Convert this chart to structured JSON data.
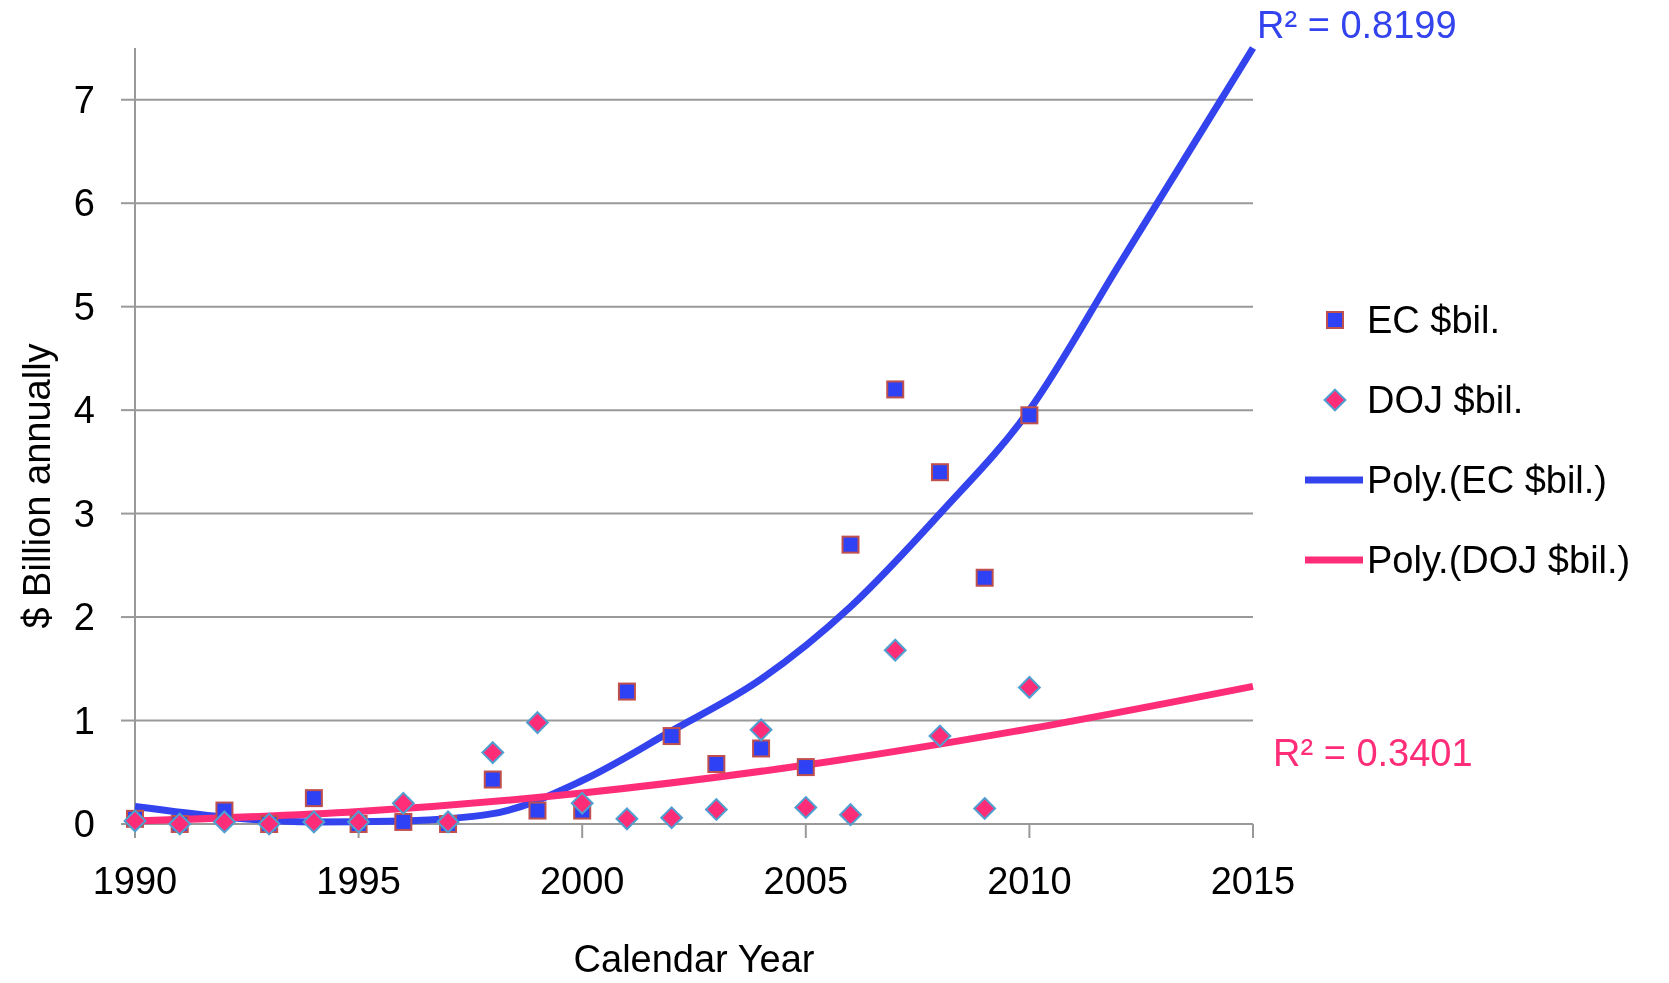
{
  "chart_data": {
    "type": "scatter",
    "xlabel": "Calendar Year",
    "ylabel": "$ Billion annually",
    "xlim": [
      1990,
      2015
    ],
    "xticks": [
      1990,
      1995,
      2000,
      2005,
      2010,
      2015
    ],
    "ylim": [
      0,
      7.5
    ],
    "yticks": [
      0,
      1,
      2,
      3,
      4,
      5,
      6,
      7
    ],
    "grid": "y",
    "legend": "right",
    "series": [
      {
        "name": "EC $bil.",
        "marker": "square",
        "color": "#2e41f5",
        "x": [
          1990,
          1991,
          1992,
          1993,
          1994,
          1995,
          1996,
          1997,
          1998,
          1999,
          2000,
          2001,
          2002,
          2003,
          2004,
          2005,
          2006,
          2007,
          2008,
          2009,
          2010
        ],
        "values": [
          0.05,
          0,
          0.13,
          0,
          0.25,
          0,
          0.02,
          0,
          0.43,
          0.13,
          0.13,
          1.28,
          0.85,
          0.58,
          0.73,
          0.55,
          2.7,
          4.2,
          3.4,
          2.38,
          3.95
        ]
      },
      {
        "name": "DOJ $bil.",
        "marker": "diamond",
        "color": "#ff2d78",
        "x": [
          1990,
          1991,
          1992,
          1993,
          1994,
          1995,
          1996,
          1997,
          1998,
          1999,
          2000,
          2001,
          2002,
          2003,
          2004,
          2005,
          2006,
          2007,
          2008,
          2009,
          2010
        ],
        "values": [
          0.03,
          0,
          0.02,
          0,
          0.02,
          0.02,
          0.2,
          0.02,
          0.69,
          0.98,
          0.2,
          0.05,
          0.06,
          0.14,
          0.91,
          0.16,
          0.09,
          1.68,
          0.85,
          0.15,
          1.32
        ]
      },
      {
        "name": "Poly.(EC $bil.)",
        "type": "line",
        "color": "#3344ee",
        "x": [
          1990,
          1994,
          1996,
          1998,
          2000,
          2002,
          2004,
          2006,
          2008,
          2010,
          2012,
          2013,
          2014,
          2015
        ],
        "values": [
          0.17,
          0.02,
          0.03,
          0.1,
          0.42,
          0.9,
          1.4,
          2.1,
          3.0,
          4.0,
          5.4,
          6.1,
          6.8,
          7.5
        ]
      },
      {
        "name": "Poly.(DOJ $bil.)",
        "type": "line",
        "color": "#ff2d78",
        "x": [
          1990,
          1995,
          2000,
          2005,
          2010,
          2015
        ],
        "values": [
          0.03,
          0.12,
          0.3,
          0.57,
          0.92,
          1.33
        ]
      }
    ],
    "annotations": [
      "R² = 0.8199",
      "R² = 0.3401"
    ]
  }
}
